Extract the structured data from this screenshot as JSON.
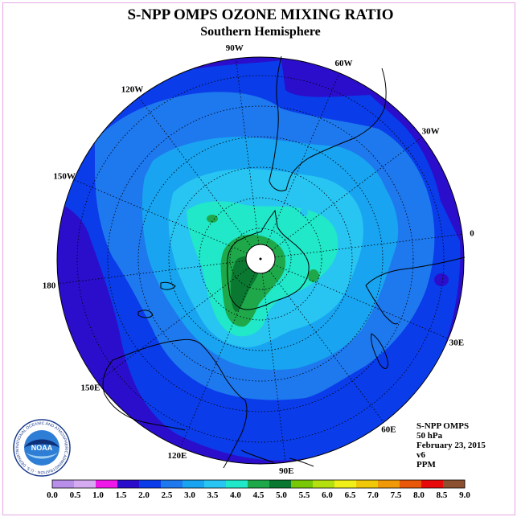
{
  "header": {
    "title": "S-NPP OMPS OZONE MIXING RATIO",
    "subtitle": "Southern Hemisphere"
  },
  "map": {
    "projection": "south-polar-stereographic",
    "longitude_labels": [
      "90W",
      "60W",
      "30W",
      "0",
      "30E",
      "60E",
      "90E",
      "120E",
      "150E",
      "180",
      "150W",
      "120W"
    ]
  },
  "info": {
    "instrument": "S-NPP OMPS",
    "level": "50 hPa",
    "date": "February 23, 2015",
    "version": "v6",
    "units": "PPM"
  },
  "colorbar": {
    "ticks": [
      "0.0",
      "0.5",
      "1.0",
      "1.5",
      "2.0",
      "2.5",
      "3.0",
      "3.5",
      "4.0",
      "4.5",
      "5.0",
      "5.5",
      "6.0",
      "6.5",
      "7.0",
      "7.5",
      "8.0",
      "8.5",
      "9.0"
    ],
    "colors": [
      "#b78ee8",
      "#d6aaf0",
      "#f018e8",
      "#2a0ecc",
      "#0a3cea",
      "#1e78ee",
      "#18a4f0",
      "#28c4f2",
      "#20e8c8",
      "#1ea84a",
      "#0a7830",
      "#78c808",
      "#b4e010",
      "#f0f018",
      "#f0c808",
      "#f09808",
      "#e85808",
      "#e80a0a",
      "#8a5030"
    ]
  },
  "logo": {
    "name": "noaa-logo",
    "text": "NOAA",
    "ring_text": "NATIONAL OCEANIC AND ATMOSPHERIC ADMINISTRATION · U.S. DEPARTMENT OF COMMERCE"
  }
}
